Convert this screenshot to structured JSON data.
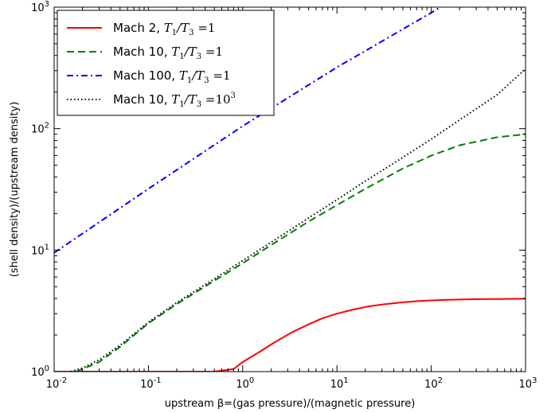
{
  "chart_data": {
    "type": "line",
    "xlabel": "upstream β=(gas pressure)/(magnetic pressure)",
    "ylabel": "(shell density)/(upstream density)",
    "x_scale": "log",
    "y_scale": "log",
    "xlim": [
      0.01,
      1000
    ],
    "ylim": [
      1,
      1000
    ],
    "grid": false,
    "legend_position": "top-left",
    "x_ticks": [
      {
        "base": "10",
        "exp": "-2",
        "value": 0.01
      },
      {
        "base": "10",
        "exp": "-1",
        "value": 0.1
      },
      {
        "base": "10",
        "exp": "0",
        "value": 1
      },
      {
        "base": "10",
        "exp": "1",
        "value": 10
      },
      {
        "base": "10",
        "exp": "2",
        "value": 100
      },
      {
        "base": "10",
        "exp": "3",
        "value": 1000
      }
    ],
    "y_ticks": [
      {
        "base": "10",
        "exp": "0",
        "value": 1
      },
      {
        "base": "10",
        "exp": "1",
        "value": 10
      },
      {
        "base": "10",
        "exp": "2",
        "value": 100
      },
      {
        "base": "10",
        "exp": "3",
        "value": 1000
      }
    ],
    "series": [
      {
        "name": "Mach 2, T1/T3=1",
        "legend": {
          "prefix": "Mach 2, ",
          "ratio_value": "1",
          "ratio_exp": ""
        },
        "color": "#ff0000",
        "dash": "solid",
        "x": [
          0.01,
          0.1,
          0.4,
          0.5,
          0.8,
          1.0,
          1.5,
          2.2,
          3.3,
          5,
          7,
          10,
          15,
          22,
          33,
          50,
          70,
          100,
          150,
          220,
          330,
          500,
          700,
          1000
        ],
        "y": [
          1,
          1,
          1,
          1,
          1.05,
          1.2,
          1.45,
          1.75,
          2.1,
          2.45,
          2.75,
          3.0,
          3.25,
          3.45,
          3.6,
          3.72,
          3.8,
          3.86,
          3.9,
          3.93,
          3.95,
          3.96,
          3.97,
          3.98
        ]
      },
      {
        "name": "Mach 10, T1/T3=1",
        "legend": {
          "prefix": "Mach 10, ",
          "ratio_value": "1",
          "ratio_exp": ""
        },
        "color": "#008000",
        "dash": "dashed",
        "x": [
          0.017,
          0.02,
          0.03,
          0.05,
          0.1,
          0.2,
          0.5,
          1,
          2,
          5,
          10,
          20,
          50,
          100,
          200,
          500,
          1000
        ],
        "y": [
          1,
          1.05,
          1.2,
          1.6,
          2.5,
          3.6,
          5.6,
          7.8,
          11,
          17.2,
          23.5,
          32,
          47,
          60,
          73,
          85,
          90
        ]
      },
      {
        "name": "Mach 100, T1/T3=1",
        "legend": {
          "prefix": "Mach 100, ",
          "ratio_value": "1",
          "ratio_exp": ""
        },
        "color": "#0000ff",
        "dash": "dashdot",
        "x": [
          0.01,
          0.1,
          1,
          10,
          100,
          125
        ],
        "y": [
          9.5,
          32,
          105,
          320,
          900,
          1000
        ]
      },
      {
        "name": "Mach 10, T1/T3=10^3",
        "legend": {
          "prefix": "Mach 10, ",
          "ratio_value": "10",
          "ratio_exp": "3"
        },
        "color": "#000000",
        "dash": "dotted",
        "x": [
          0.015,
          0.02,
          0.03,
          0.05,
          0.1,
          0.2,
          0.5,
          1,
          2,
          5,
          10,
          20,
          50,
          100,
          200,
          500,
          1000
        ],
        "y": [
          1,
          1.07,
          1.25,
          1.65,
          2.55,
          3.7,
          5.8,
          8.2,
          11.6,
          18.4,
          26,
          37,
          58,
          82,
          118,
          190,
          310
        ]
      }
    ]
  }
}
